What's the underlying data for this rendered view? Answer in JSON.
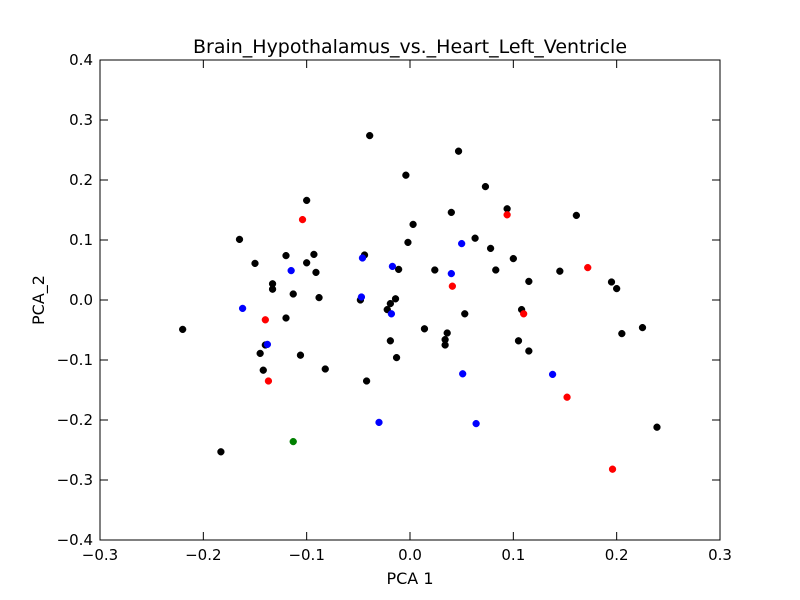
{
  "chart_data": {
    "type": "scatter",
    "title": "Brain_Hypothalamus_vs._Heart_Left_Ventricle",
    "xlabel": "PCA 1",
    "ylabel": "PCA_2",
    "xlim": [
      -0.3,
      0.3
    ],
    "ylim": [
      -0.4,
      0.4
    ],
    "xticks": [
      -0.3,
      -0.2,
      -0.1,
      0.0,
      0.1,
      0.2,
      0.3
    ],
    "yticks": [
      -0.4,
      -0.3,
      -0.2,
      -0.1,
      0.0,
      0.1,
      0.2,
      0.3,
      0.4
    ],
    "xtick_labels": [
      "−0.3",
      "−0.2",
      "−0.1",
      "0.0",
      "0.1",
      "0.2",
      "0.3"
    ],
    "ytick_labels": [
      "−0.4",
      "−0.3",
      "−0.2",
      "−0.1",
      "0.0",
      "0.1",
      "0.2",
      "0.3",
      "0.4"
    ],
    "grid": false,
    "legend": "none",
    "series": [
      {
        "color": "#000000",
        "x": [
          -0.039,
          0.047,
          -0.004,
          0.073,
          -0.1,
          0.094,
          0.161,
          0.04,
          0.003,
          -0.165,
          0.063,
          -0.002,
          -0.044,
          -0.093,
          -0.12,
          0.078,
          -0.15,
          0.1,
          0.024,
          -0.011,
          0.083,
          0.145,
          -0.091,
          0.115,
          -0.1,
          -0.133,
          -0.133,
          -0.113,
          -0.088,
          -0.014,
          -0.048,
          -0.019,
          0.195,
          0.2,
          -0.022,
          0.053,
          -0.12,
          -0.22,
          0.014,
          0.036,
          0.225,
          0.205,
          0.108,
          0.034,
          0.105,
          -0.019,
          0.034,
          -0.14,
          0.115,
          -0.145,
          -0.106,
          -0.013,
          -0.082,
          -0.142,
          -0.042,
          0.239,
          -0.183
        ],
        "y": [
          0.274,
          0.248,
          0.208,
          0.189,
          0.166,
          0.152,
          0.141,
          0.146,
          0.126,
          0.101,
          0.103,
          0.096,
          0.075,
          0.076,
          0.074,
          0.086,
          0.061,
          0.069,
          0.05,
          0.051,
          0.05,
          0.048,
          0.046,
          0.031,
          0.062,
          0.027,
          0.018,
          0.01,
          0.004,
          0.002,
          0.0,
          -0.006,
          0.03,
          0.019,
          -0.016,
          -0.023,
          -0.03,
          -0.049,
          -0.048,
          -0.055,
          -0.046,
          -0.056,
          -0.016,
          -0.066,
          -0.068,
          -0.068,
          -0.075,
          -0.075,
          -0.085,
          -0.089,
          -0.092,
          -0.096,
          -0.115,
          -0.117,
          -0.135,
          -0.212,
          -0.253
        ]
      },
      {
        "color": "#0000ff",
        "x": [
          0.05,
          -0.046,
          0.04,
          -0.017,
          -0.115,
          -0.162,
          -0.047,
          -0.018,
          -0.138,
          0.051,
          0.138,
          -0.03,
          0.064
        ],
        "y": [
          0.094,
          0.07,
          0.044,
          0.056,
          0.049,
          -0.014,
          0.005,
          -0.023,
          -0.074,
          -0.123,
          -0.124,
          -0.204,
          -0.206
        ]
      },
      {
        "color": "#ff0000",
        "x": [
          -0.104,
          0.094,
          0.172,
          0.041,
          0.11,
          -0.14,
          -0.137,
          0.152,
          0.196
        ],
        "y": [
          0.134,
          0.142,
          0.054,
          0.023,
          -0.023,
          -0.033,
          -0.135,
          -0.162,
          -0.282
        ]
      },
      {
        "color": "#008000",
        "x": [
          -0.113
        ],
        "y": [
          -0.236
        ]
      }
    ]
  }
}
